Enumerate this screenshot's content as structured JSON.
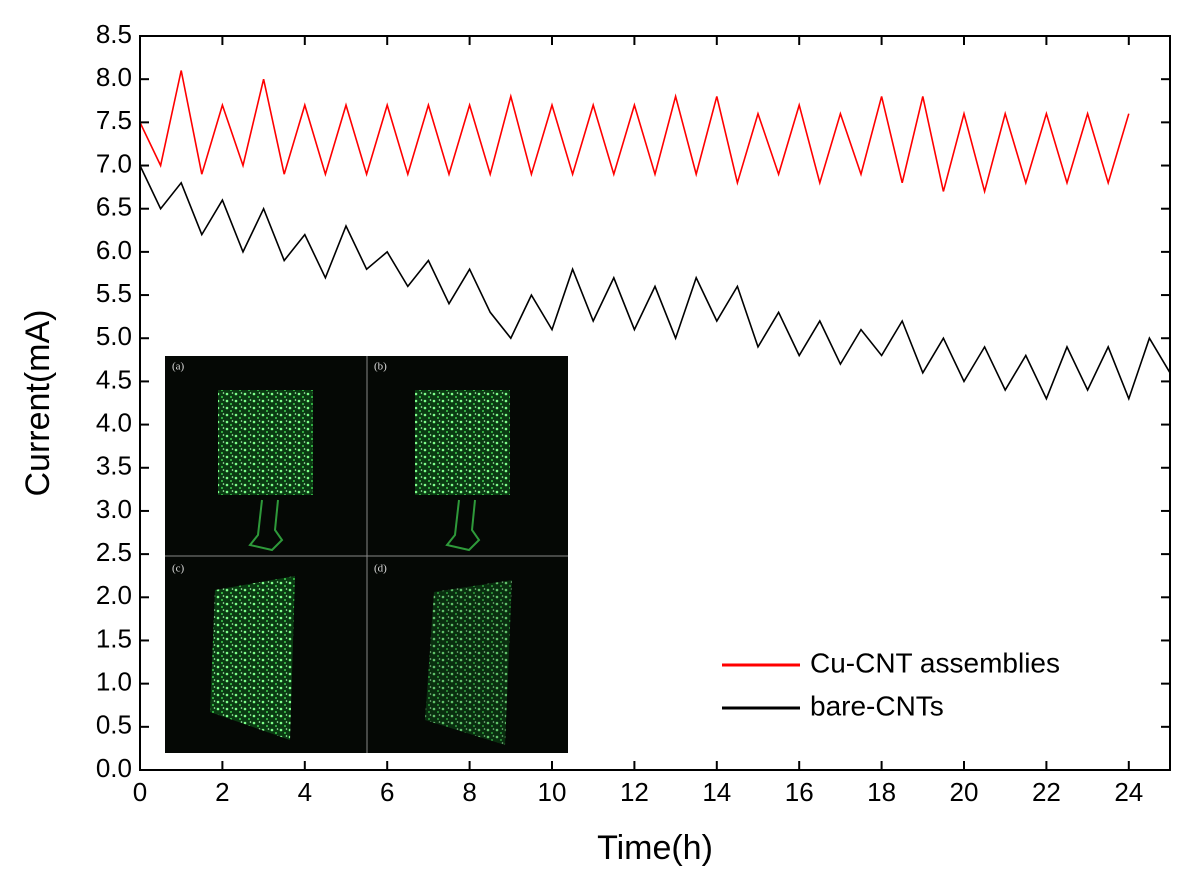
{
  "chart_data": {
    "type": "line",
    "xlabel": "Time(h)",
    "ylabel": "Current(mA)",
    "xlim": [
      0,
      25
    ],
    "ylim": [
      0,
      8.5
    ],
    "xticks": [
      0,
      2,
      4,
      6,
      8,
      10,
      12,
      14,
      16,
      18,
      20,
      22,
      24
    ],
    "yticks": [
      {
        "value": 0,
        "label": "0.0"
      },
      0.5,
      {
        "value": 1,
        "label": "1.0"
      },
      1.5,
      {
        "value": 2,
        "label": "2.0"
      },
      2.5,
      {
        "value": 3,
        "label": "3.0"
      },
      3.5,
      {
        "value": 4,
        "label": "4.0"
      },
      4.5,
      {
        "value": 5,
        "label": "5.0"
      },
      5.5,
      {
        "value": 6,
        "label": "6.0"
      },
      6.5,
      {
        "value": 7,
        "label": "7.0"
      },
      7.5,
      {
        "value": 8,
        "label": "8.0"
      },
      8.5
    ],
    "legend": "lower right",
    "series": [
      {
        "name": "Cu-CNT assemblies",
        "color": "#ff0000",
        "x": [
          0,
          0.5,
          1,
          1.5,
          2,
          2.5,
          3,
          3.5,
          4,
          4.5,
          5,
          5.5,
          6,
          6.5,
          7,
          7.5,
          8,
          8.5,
          9,
          9.5,
          10,
          10.5,
          11,
          11.5,
          12,
          12.5,
          13,
          13.5,
          14,
          14.5,
          15,
          15.5,
          16,
          16.5,
          17,
          17.5,
          18,
          18.5,
          19,
          19.5,
          20,
          20.5,
          21,
          21.5,
          22,
          22.5,
          23,
          23.5,
          24
        ],
        "values": [
          7.5,
          7.0,
          8.1,
          6.9,
          7.7,
          7.0,
          8.0,
          6.9,
          7.7,
          6.9,
          7.7,
          6.9,
          7.7,
          6.9,
          7.7,
          6.9,
          7.7,
          6.9,
          7.8,
          6.9,
          7.7,
          6.9,
          7.7,
          6.9,
          7.7,
          6.9,
          7.8,
          6.9,
          7.8,
          6.8,
          7.6,
          6.9,
          7.7,
          6.8,
          7.6,
          6.9,
          7.8,
          6.8,
          7.8,
          6.7,
          7.6,
          6.7,
          7.6,
          6.8,
          7.6,
          6.8,
          7.6,
          6.8,
          7.6
        ]
      },
      {
        "name": "bare-CNTs",
        "color": "#000000",
        "x": [
          0,
          0.5,
          1,
          1.5,
          2,
          2.5,
          3,
          3.5,
          4,
          4.5,
          5,
          5.5,
          6,
          6.5,
          7,
          7.5,
          8,
          8.5,
          9,
          9.5,
          10,
          10.5,
          11,
          11.5,
          12,
          12.5,
          13,
          13.5,
          14,
          14.5,
          15,
          15.5,
          16,
          16.5,
          17,
          17.5,
          18,
          18.5,
          19,
          19.5,
          20,
          20.5,
          21,
          21.5,
          22,
          22.5,
          23,
          23.5,
          24,
          24.5,
          25
        ],
        "values": [
          7.0,
          6.5,
          6.8,
          6.2,
          6.6,
          6.0,
          6.5,
          5.9,
          6.2,
          5.7,
          6.3,
          5.8,
          6.0,
          5.6,
          5.9,
          5.4,
          5.8,
          5.3,
          5.0,
          5.5,
          5.1,
          5.8,
          5.2,
          5.7,
          5.1,
          5.6,
          5.0,
          5.7,
          5.2,
          5.6,
          4.9,
          5.3,
          4.8,
          5.2,
          4.7,
          5.1,
          4.8,
          5.2,
          4.6,
          5.0,
          4.5,
          4.9,
          4.4,
          4.8,
          4.3,
          4.9,
          4.4,
          4.9,
          4.3,
          5.0,
          4.6
        ]
      }
    ],
    "inset_labels": [
      "(a)",
      "(b)",
      "(c)",
      "(d)"
    ]
  }
}
